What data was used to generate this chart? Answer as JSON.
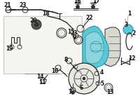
{
  "bg_color": "#ffffff",
  "fig_width": 2.0,
  "fig_height": 1.47,
  "dpi": 100,
  "highlight_color": "#5bc8d8",
  "pump_body_color": "#7ab8c0",
  "line_color": "#2a2a2a",
  "gray_part": "#888888",
  "dark_gray": "#555555",
  "box_fill": "#f0f0e8",
  "box_edge": "#aaaaaa"
}
